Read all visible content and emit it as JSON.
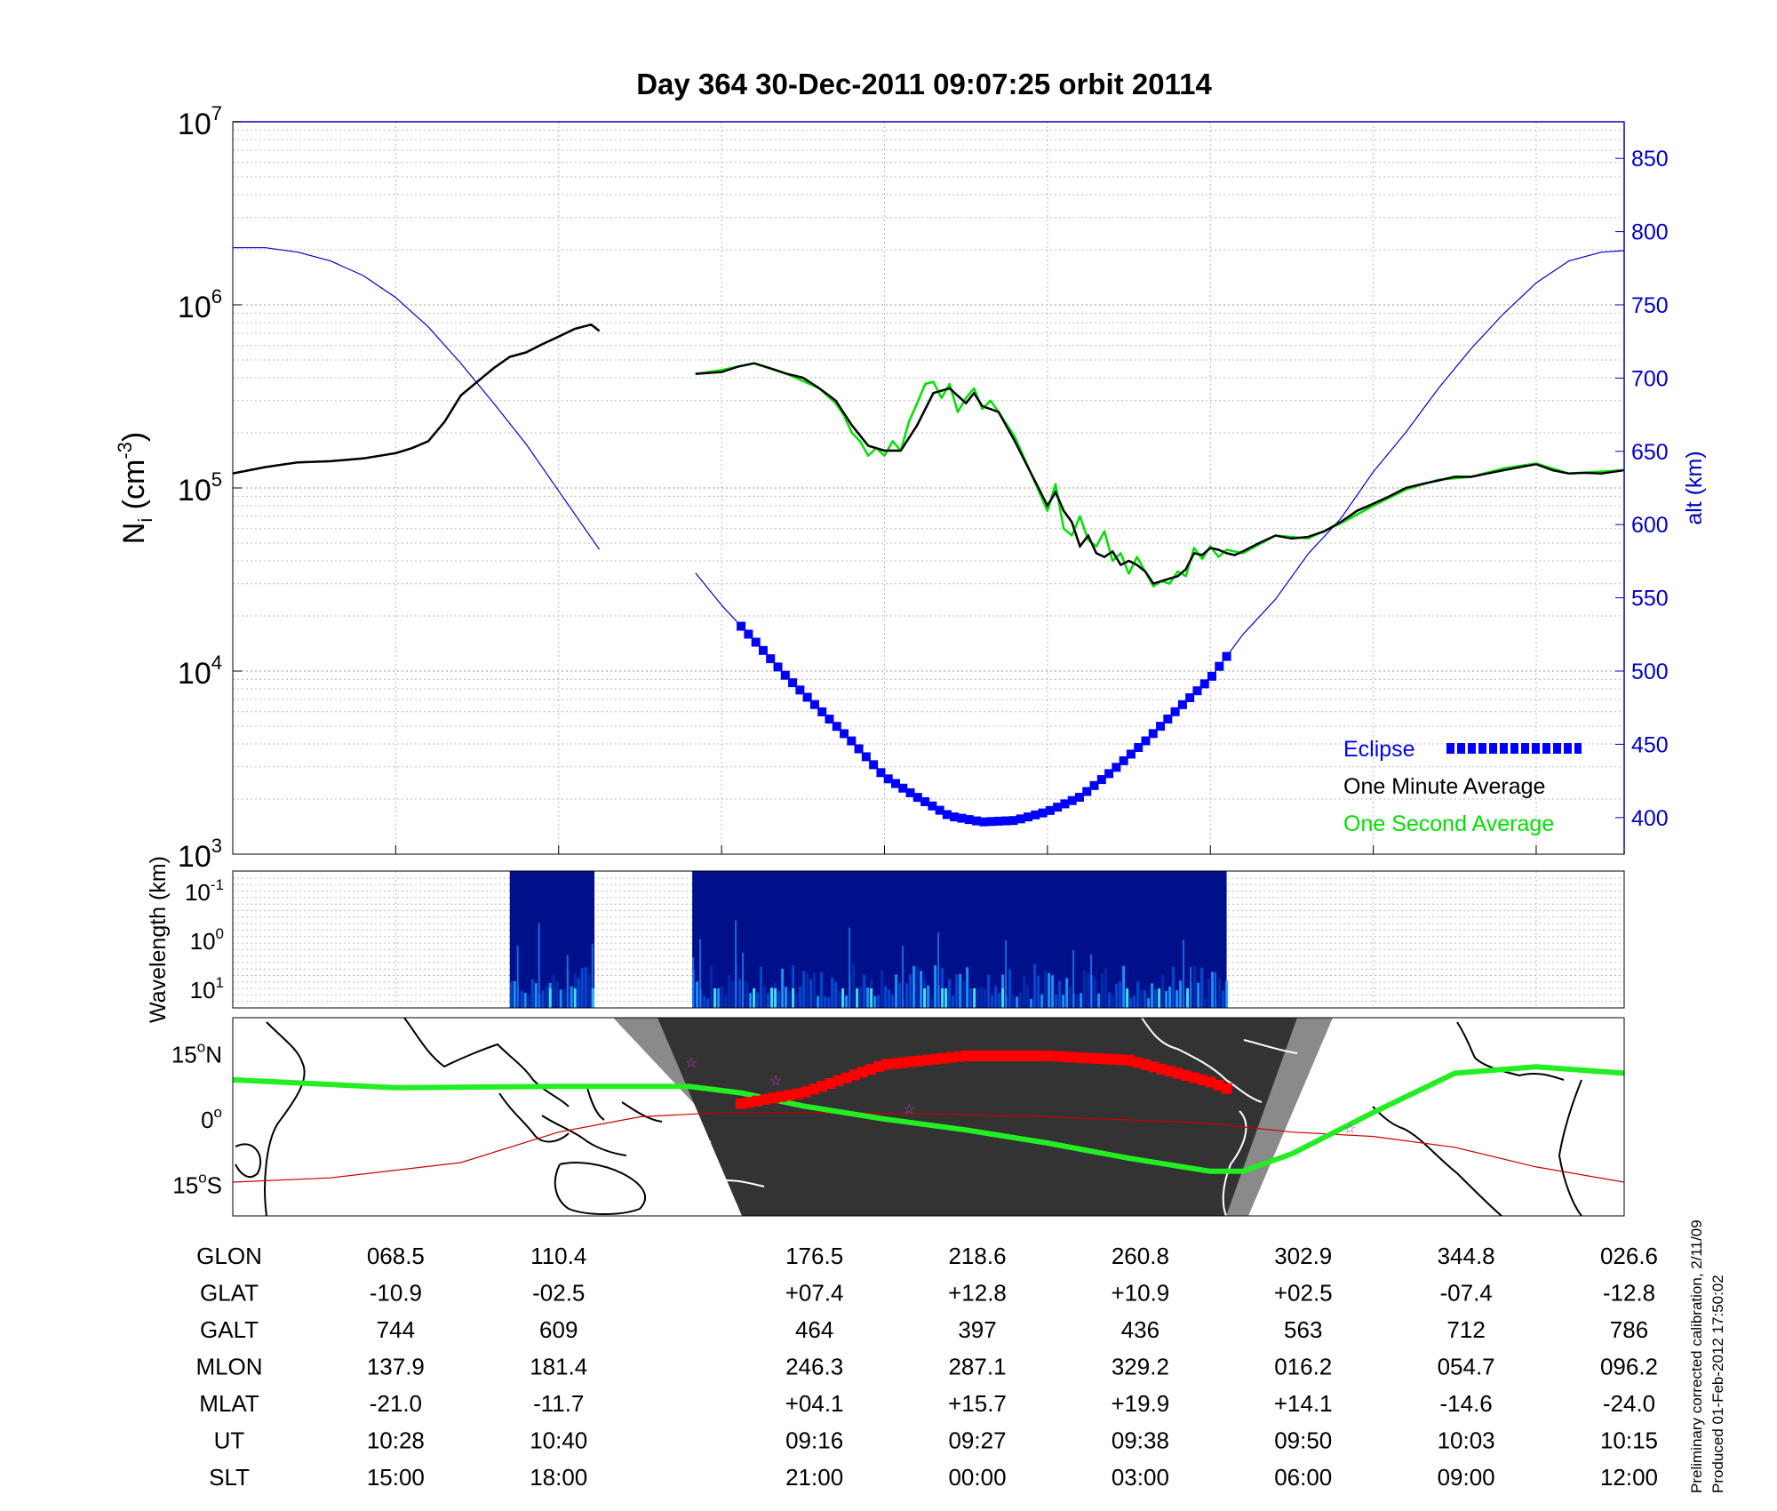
{
  "title": "Day 364  30-Dec-2011 09:07:25   orbit 20114",
  "colors": {
    "density": "#000000",
    "second_avg": "#00e000",
    "altitude": "#0000cc",
    "eclipse": "#0000ff",
    "track_eclipse": "#ff0000",
    "mag_equator": "#cc0000",
    "ground_track": "#22ee22",
    "night": "#333333",
    "terminator": "#888888"
  },
  "chart_data": [
    {
      "type": "line",
      "title": "Day 364  30-Dec-2011 09:07:25   orbit 20114",
      "ylabel_left": "N",
      "ylabel_left_sub": "i",
      "ylabel_left_unit": " (cm",
      "ylabel_left_exp": "-3",
      "ylabel_left_close": ")",
      "ylabel_right": "alt (km)",
      "yscale_left": "log",
      "ylim_left": [
        1000,
        10000000
      ],
      "left_ticks": [
        {
          "base": "10",
          "exp": "3"
        },
        {
          "base": "10",
          "exp": "4"
        },
        {
          "base": "10",
          "exp": "5"
        },
        {
          "base": "10",
          "exp": "6"
        },
        {
          "base": "10",
          "exp": "7"
        }
      ],
      "ylim_right": [
        375,
        875
      ],
      "right_ticks": [
        "400",
        "450",
        "500",
        "550",
        "600",
        "650",
        "700",
        "750",
        "800",
        "850"
      ],
      "xlim": [
        0,
        8.54
      ],
      "grid": true,
      "legend": [
        {
          "label": "Eclipse",
          "color": "#0000ff"
        },
        {
          "label": "One Minute Average",
          "color": "#000000"
        },
        {
          "label": "One Second Average",
          "color": "#00e000"
        }
      ],
      "series": [
        {
          "name": "One Minute Average",
          "axis": "left",
          "x": [
            0,
            0.2,
            0.4,
            0.6,
            0.8,
            1.0,
            1.1,
            1.2,
            1.3,
            1.4,
            1.5,
            1.6,
            1.7,
            1.8,
            1.9,
            2.0,
            2.1,
            2.2,
            2.25
          ],
          "y": [
            120000,
            130000,
            138000,
            140000,
            145000,
            155000,
            165000,
            180000,
            230000,
            320000,
            380000,
            450000,
            520000,
            550000,
            610000,
            670000,
            740000,
            780000,
            720000
          ]
        },
        {
          "name": "One Minute Average",
          "axis": "left",
          "x": [
            2.84,
            3.0,
            3.1,
            3.2,
            3.3,
            3.4,
            3.5,
            3.6,
            3.7,
            3.8,
            3.9,
            4.0,
            4.1,
            4.2,
            4.3,
            4.4,
            4.5,
            4.55,
            4.6,
            4.7,
            4.8,
            4.9,
            5.0,
            5.05,
            5.1,
            5.15,
            5.2,
            5.25,
            5.3,
            5.35,
            5.4,
            5.45,
            5.5,
            5.55,
            5.6,
            5.65,
            5.7,
            5.75,
            5.8,
            5.85,
            5.9,
            5.95,
            6.0,
            6.05,
            6.1,
            6.15,
            6.2,
            6.3,
            6.4,
            6.5,
            6.6,
            6.7,
            6.8,
            6.9,
            7.0,
            7.1,
            7.2,
            7.3,
            7.4,
            7.5,
            7.6,
            7.7,
            7.8,
            7.9,
            8.0,
            8.1,
            8.2,
            8.3,
            8.4,
            8.54
          ],
          "y": [
            420000,
            430000,
            460000,
            480000,
            450000,
            420000,
            400000,
            350000,
            300000,
            220000,
            170000,
            160000,
            160000,
            220000,
            330000,
            350000,
            290000,
            330000,
            280000,
            260000,
            180000,
            120000,
            80000,
            95000,
            75000,
            65000,
            48000,
            55000,
            44000,
            42000,
            45000,
            38000,
            40000,
            38000,
            35000,
            30000,
            31000,
            32000,
            33000,
            36000,
            44000,
            43000,
            47000,
            46000,
            44000,
            43000,
            45000,
            50000,
            55000,
            53000,
            54000,
            58000,
            65000,
            75000,
            82000,
            90000,
            100000,
            105000,
            110000,
            115000,
            115000,
            120000,
            125000,
            130000,
            135000,
            125000,
            120000,
            121000,
            120000,
            125000
          ]
        },
        {
          "name": "One Second Average",
          "axis": "left",
          "x": [
            2.84,
            3.0,
            3.2,
            3.4,
            3.6,
            3.7,
            3.75,
            3.8,
            3.85,
            3.9,
            3.95,
            4.0,
            4.05,
            4.1,
            4.15,
            4.2,
            4.25,
            4.3,
            4.35,
            4.4,
            4.45,
            4.5,
            4.55,
            4.6,
            4.65,
            4.7,
            4.8,
            4.9,
            5.0,
            5.05,
            5.1,
            5.15,
            5.2,
            5.25,
            5.3,
            5.35,
            5.4,
            5.45,
            5.5,
            5.55,
            5.6,
            5.65,
            5.7,
            5.75,
            5.8,
            5.85,
            5.9,
            5.95,
            6.0,
            6.05,
            6.1,
            6.2,
            6.4,
            6.6,
            6.8,
            7.0,
            7.2,
            7.4,
            7.6,
            7.8,
            8.0,
            8.2,
            8.54
          ],
          "y": [
            420000,
            440000,
            480000,
            420000,
            350000,
            290000,
            250000,
            200000,
            180000,
            150000,
            165000,
            150000,
            180000,
            160000,
            230000,
            290000,
            370000,
            380000,
            310000,
            370000,
            260000,
            310000,
            350000,
            270000,
            300000,
            260000,
            190000,
            120000,
            75000,
            105000,
            60000,
            55000,
            70000,
            52000,
            48000,
            58000,
            40000,
            44000,
            34000,
            42000,
            35000,
            29000,
            31000,
            30000,
            35000,
            33000,
            47000,
            41000,
            48000,
            42000,
            46000,
            44000,
            55000,
            53000,
            64000,
            80000,
            98000,
            111000,
            115000,
            128000,
            136000,
            120000,
            125000
          ]
        },
        {
          "name": "alt",
          "axis": "right",
          "x": [
            0,
            0.2,
            0.4,
            0.6,
            0.8,
            1.0,
            1.2,
            1.4,
            1.6,
            1.8,
            2.0,
            2.25
          ],
          "y": [
            789,
            789,
            786,
            780,
            770,
            755,
            735,
            710,
            683,
            655,
            623,
            583
          ]
        },
        {
          "name": "alt",
          "axis": "right",
          "x": [
            2.84,
            3.0,
            3.2,
            3.4,
            3.6,
            3.8,
            4.0,
            4.2,
            4.4,
            4.6,
            4.8,
            5.0,
            5.2,
            5.4,
            5.6,
            5.8,
            6.0,
            6.2,
            6.4,
            6.6,
            6.8,
            7.0,
            7.2,
            7.4,
            7.6,
            7.8,
            8.0,
            8.2,
            8.4,
            8.54
          ],
          "y": [
            567,
            545,
            521,
            496,
            474,
            452,
            428,
            414,
            401,
            397,
            398,
            404,
            414,
            432,
            452,
            474,
            495,
            525,
            549,
            580,
            604,
            636,
            663,
            693,
            720,
            744,
            765,
            780,
            786,
            787
          ]
        }
      ],
      "eclipse": {
        "x_start": 3.12,
        "x_end": 6.1
      }
    },
    {
      "type": "heatmap",
      "ylabel": "Wavelength (km)",
      "y_ticks": [
        {
          "base": "10",
          "exp": "-1"
        },
        {
          "base": "10",
          "exp": "0"
        },
        {
          "base": "10",
          "exp": "1"
        }
      ],
      "segments": [
        [
          1.7,
          2.22
        ],
        [
          2.82,
          6.1
        ]
      ]
    },
    {
      "type": "map",
      "y_ticks": [
        {
          "deg": "15",
          "hem": "N"
        },
        {
          "deg": "0",
          "hem": ""
        },
        {
          "deg": "15",
          "hem": "S"
        }
      ],
      "ground_track": {
        "x": [
          0,
          1.0,
          2.0,
          2.8,
          3.12,
          3.5,
          4.0,
          4.5,
          5.0,
          5.5,
          6.0,
          6.2,
          6.5,
          7.0,
          7.5,
          8.0,
          8.54
        ],
        "lat": [
          9.0,
          7.2,
          7.5,
          7.5,
          6.0,
          3.0,
          0,
          -2.5,
          -5.5,
          -9.0,
          -12.0,
          -12.0,
          -8.0,
          1.5,
          10.5,
          12.0,
          10.5
        ]
      },
      "eclipse_track": {
        "x": [
          3.12,
          3.5,
          4.0,
          4.5,
          5.0,
          5.5,
          6.0,
          6.1
        ],
        "lat": [
          3.5,
          6.0,
          12.5,
          14.5,
          14.5,
          13.5,
          8.5,
          7.0
        ]
      },
      "mag_equator": {
        "x": [
          0,
          0.6,
          1.4,
          2.0,
          2.5,
          3.0,
          3.5,
          4.0,
          4.5,
          5.0,
          5.5,
          6.0,
          6.5,
          7.0,
          7.5,
          8.0,
          8.54
        ],
        "lat": [
          -14.5,
          -13.5,
          -10.0,
          -3.0,
          0.5,
          1.5,
          1.5,
          1.3,
          1.0,
          0.5,
          -0.2,
          -1.0,
          -3.0,
          -4.0,
          -6.5,
          -11.0,
          -14.5
        ]
      }
    },
    {
      "type": "table",
      "rows": [
        {
          "label": "GLON",
          "values": [
            "068.5",
            "110.4",
            "",
            "176.5",
            "218.6",
            "260.8",
            "302.9",
            "344.8",
            "026.6"
          ]
        },
        {
          "label": "GLAT",
          "values": [
            "-10.9",
            "-02.5",
            "",
            "+07.4",
            "+12.8",
            "+10.9",
            "+02.5",
            "-07.4",
            "-12.8"
          ]
        },
        {
          "label": "GALT",
          "values": [
            "744",
            "609",
            "",
            "464",
            "397",
            "436",
            "563",
            "712",
            "786"
          ]
        },
        {
          "label": "MLON",
          "values": [
            "137.9",
            "181.4",
            "",
            "246.3",
            "287.1",
            "329.2",
            "016.2",
            "054.7",
            "096.2"
          ]
        },
        {
          "label": "MLAT",
          "values": [
            "-21.0",
            "-11.7",
            "",
            "+04.1",
            "+15.7",
            "+19.9",
            "+14.1",
            "-14.6",
            "-24.0"
          ]
        },
        {
          "label": "UT",
          "values": [
            "10:28",
            "10:40",
            "",
            "09:16",
            "09:27",
            "09:38",
            "09:50",
            "10:03",
            "10:15"
          ]
        },
        {
          "label": "SLT",
          "values": [
            "15:00",
            "18:00",
            "",
            "21:00",
            "00:00",
            "03:00",
            "06:00",
            "09:00",
            "12:00"
          ]
        }
      ],
      "column_x": [
        1,
        2,
        3,
        3.57,
        4.57,
        5.57,
        6.57,
        7.57,
        8.57
      ]
    }
  ],
  "footnote": {
    "line1": "Preliminary corrected calibration, 2/11/09",
    "line2": "Produced 01-Feb-2012 17:50:02"
  }
}
